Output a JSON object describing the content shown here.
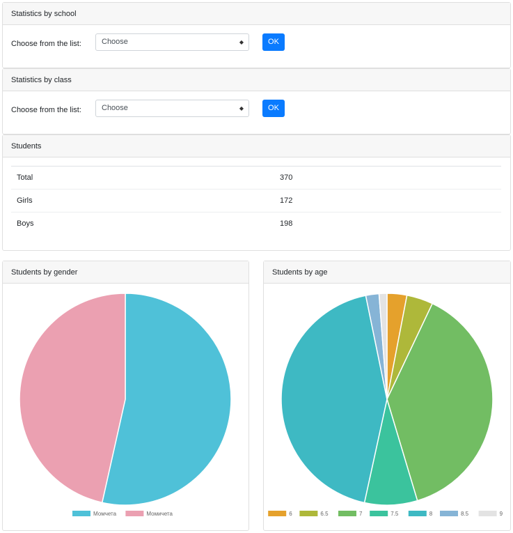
{
  "school_card": {
    "title": "Statistics by school",
    "label": "Choose from the list:",
    "select_value": "Choose",
    "ok": "OK"
  },
  "class_card": {
    "title": "Statistics by class",
    "label": "Choose from the list:",
    "select_value": "Choose",
    "ok": "OK"
  },
  "students_card": {
    "title": "Students",
    "rows": [
      {
        "label": "Total",
        "value": "370"
      },
      {
        "label": "Girls",
        "value": "172"
      },
      {
        "label": "Boys",
        "value": "198"
      }
    ]
  },
  "gender_card": {
    "title": "Students by gender"
  },
  "age_card": {
    "title": "Students by age"
  },
  "chart_data": [
    {
      "type": "pie",
      "title": "Students by gender",
      "categories": [
        "Момчета",
        "Момичета"
      ],
      "values": [
        198,
        172
      ],
      "colors": [
        "#4fc1d8",
        "#eba0b1"
      ],
      "legend": "bottom"
    },
    {
      "type": "pie",
      "title": "Students by age",
      "categories": [
        "6",
        "6.5",
        "7",
        "7.5",
        "8",
        "8.5",
        "9"
      ],
      "values": [
        3,
        4,
        38,
        8,
        43,
        2,
        1.2
      ],
      "colors": [
        "#e5a12c",
        "#aeb83a",
        "#72bd63",
        "#3bc39d",
        "#3eb9c3",
        "#86b4d6",
        "#e3e3e3"
      ],
      "legend": "bottom"
    }
  ]
}
